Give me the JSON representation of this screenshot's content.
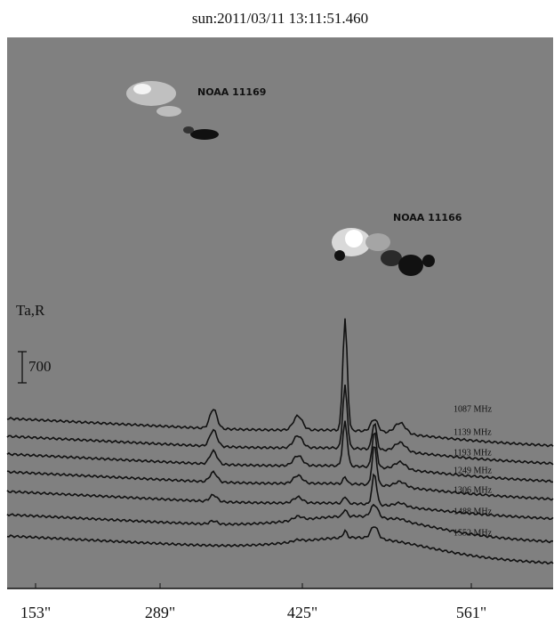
{
  "figure": {
    "title": "sun:2011/03/11 13:11:51.460",
    "regions": [
      "NOAA 11169",
      "NOAA 11166"
    ],
    "y_label": "Ta,R",
    "scale_bar": "700",
    "frequencies": [
      "1087 MHz",
      "1139 MHz",
      "1193 MHz",
      "1249 MHz",
      "1306 MHz",
      "1488 MHz",
      "1552 MHz"
    ],
    "x_tick_labels": [
      "153\"",
      "289\"",
      "425\"",
      "561\""
    ]
  }
}
